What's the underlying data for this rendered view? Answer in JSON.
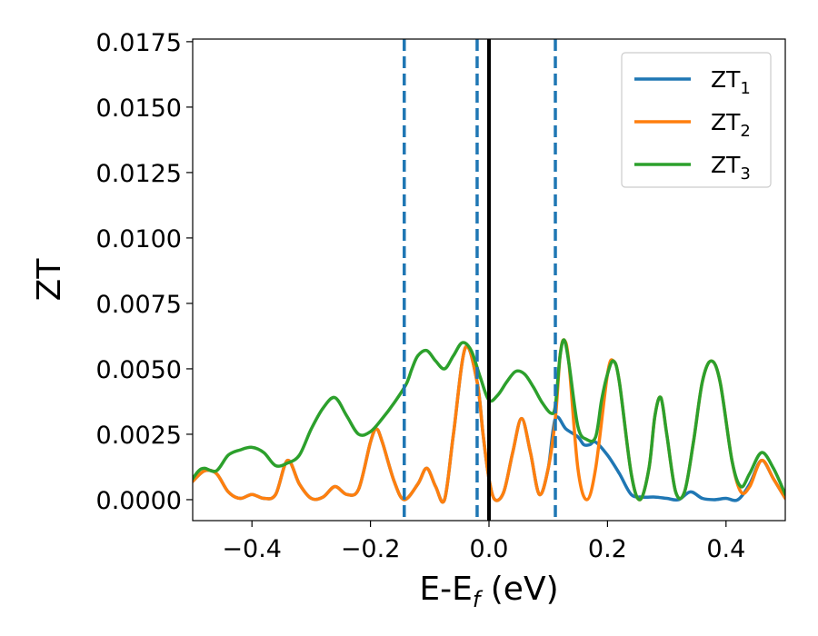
{
  "chart_data": {
    "type": "line",
    "xlabel_main": "E-E",
    "xlabel_sub": "f",
    "xlabel_unit": " (eV)",
    "ylabel": "ZT",
    "xlim": [
      -0.5,
      0.5
    ],
    "ylim": [
      -0.0008,
      0.0176
    ],
    "x_ticks": [
      -0.4,
      -0.2,
      0.0,
      0.2,
      0.4
    ],
    "x_tick_labels": [
      "−0.4",
      "−0.2",
      "0.0",
      "0.2",
      "0.4"
    ],
    "y_ticks": [
      0.0,
      0.0025,
      0.005,
      0.0075,
      0.01,
      0.0125,
      0.015,
      0.0175
    ],
    "y_tick_labels": [
      "0.0000",
      "0.0025",
      "0.0050",
      "0.0075",
      "0.0100",
      "0.0125",
      "0.0150",
      "0.0175"
    ],
    "grid": false,
    "legend_position": "top-right",
    "vlines": [
      {
        "x": -0.143,
        "style": "dashed",
        "color": "#1f77b4"
      },
      {
        "x": -0.02,
        "style": "dashed",
        "color": "#1f77b4"
      },
      {
        "x": 0.0,
        "style": "solid",
        "color": "#000000"
      },
      {
        "x": 0.112,
        "style": "dashed",
        "color": "#1f77b4"
      }
    ],
    "series": [
      {
        "name": "ZT",
        "subscript": "1",
        "color": "#1f77b4",
        "points": [
          [
            -0.5,
            0.0007
          ],
          [
            -0.48,
            0.0011
          ],
          [
            -0.46,
            0.001
          ],
          [
            -0.44,
            0.0003
          ],
          [
            -0.42,
            5e-05
          ],
          [
            -0.4,
            0.0002
          ],
          [
            -0.38,
            5e-05
          ],
          [
            -0.36,
            0.0002
          ],
          [
            -0.34,
            0.0015
          ],
          [
            -0.32,
            0.0006
          ],
          [
            -0.3,
            5e-05
          ],
          [
            -0.28,
            0.0001
          ],
          [
            -0.26,
            0.0005
          ],
          [
            -0.24,
            0.0002
          ],
          [
            -0.22,
            0.0004
          ],
          [
            -0.2,
            0.0022
          ],
          [
            -0.19,
            0.0027
          ],
          [
            -0.18,
            0.0022
          ],
          [
            -0.16,
            0.0007
          ],
          [
            -0.143,
            0.0
          ],
          [
            -0.12,
            0.0006
          ],
          [
            -0.105,
            0.0012
          ],
          [
            -0.09,
            0.0005
          ],
          [
            -0.075,
            0.0
          ],
          [
            -0.06,
            0.0025
          ],
          [
            -0.04,
            0.0058
          ],
          [
            -0.02,
            0.0045
          ],
          [
            -0.01,
            0.0025
          ],
          [
            0.0,
            0.0008
          ],
          [
            0.01,
            0.0
          ],
          [
            0.025,
            0.0003
          ],
          [
            0.04,
            0.0018
          ],
          [
            0.055,
            0.0031
          ],
          [
            0.07,
            0.0018
          ],
          [
            0.085,
            0.0002
          ],
          [
            0.1,
            0.0012
          ],
          [
            0.112,
            0.0031
          ],
          [
            0.13,
            0.0027
          ],
          [
            0.15,
            0.0024
          ],
          [
            0.16,
            0.0021
          ],
          [
            0.17,
            0.0021
          ],
          [
            0.18,
            0.0022
          ],
          [
            0.2,
            0.0017
          ],
          [
            0.22,
            0.001
          ],
          [
            0.24,
            0.0002
          ],
          [
            0.26,
            0.0001
          ],
          [
            0.28,
            0.0001
          ],
          [
            0.3,
            5e-05
          ],
          [
            0.32,
            0.0
          ],
          [
            0.34,
            0.0003
          ],
          [
            0.36,
            5e-05
          ],
          [
            0.38,
            0.0
          ],
          [
            0.4,
            5e-05
          ],
          [
            0.42,
            0.0
          ],
          [
            0.44,
            0.0006
          ],
          [
            0.46,
            0.0015
          ],
          [
            0.48,
            0.0008
          ],
          [
            0.5,
            5e-05
          ]
        ]
      },
      {
        "name": "ZT",
        "subscript": "2",
        "color": "#ff7f0e",
        "points": [
          [
            -0.5,
            0.0007
          ],
          [
            -0.48,
            0.0011
          ],
          [
            -0.46,
            0.001
          ],
          [
            -0.44,
            0.0003
          ],
          [
            -0.42,
            5e-05
          ],
          [
            -0.4,
            0.0002
          ],
          [
            -0.38,
            5e-05
          ],
          [
            -0.36,
            0.0002
          ],
          [
            -0.34,
            0.0015
          ],
          [
            -0.32,
            0.0006
          ],
          [
            -0.3,
            5e-05
          ],
          [
            -0.28,
            0.0001
          ],
          [
            -0.26,
            0.0005
          ],
          [
            -0.24,
            0.0002
          ],
          [
            -0.22,
            0.0004
          ],
          [
            -0.2,
            0.0022
          ],
          [
            -0.19,
            0.0027
          ],
          [
            -0.18,
            0.0022
          ],
          [
            -0.16,
            0.0007
          ],
          [
            -0.143,
            0.0
          ],
          [
            -0.12,
            0.0006
          ],
          [
            -0.105,
            0.0012
          ],
          [
            -0.09,
            0.0005
          ],
          [
            -0.075,
            0.0
          ],
          [
            -0.06,
            0.0025
          ],
          [
            -0.04,
            0.0058
          ],
          [
            -0.02,
            0.0045
          ],
          [
            -0.01,
            0.0025
          ],
          [
            0.0,
            0.0008
          ],
          [
            0.01,
            0.0
          ],
          [
            0.025,
            0.0003
          ],
          [
            0.04,
            0.0018
          ],
          [
            0.055,
            0.0031
          ],
          [
            0.07,
            0.0018
          ],
          [
            0.085,
            0.0002
          ],
          [
            0.1,
            0.0012
          ],
          [
            0.112,
            0.0031
          ],
          [
            0.12,
            0.0055
          ],
          [
            0.127,
            0.0061
          ],
          [
            0.135,
            0.0052
          ],
          [
            0.15,
            0.0012
          ],
          [
            0.165,
            0.0
          ],
          [
            0.18,
            0.0012
          ],
          [
            0.2,
            0.0048
          ],
          [
            0.21,
            0.0053
          ],
          [
            0.22,
            0.0045
          ],
          [
            0.24,
            0.001
          ],
          [
            0.255,
            0.0
          ],
          [
            0.27,
            0.0012
          ],
          [
            0.28,
            0.0032
          ],
          [
            0.29,
            0.0039
          ],
          [
            0.3,
            0.0025
          ],
          [
            0.315,
            0.0003
          ],
          [
            0.33,
            0.0003
          ],
          [
            0.345,
            0.0022
          ],
          [
            0.36,
            0.0045
          ],
          [
            0.375,
            0.0053
          ],
          [
            0.39,
            0.0045
          ],
          [
            0.41,
            0.0015
          ],
          [
            0.425,
            0.0003
          ],
          [
            0.44,
            0.0005
          ],
          [
            0.46,
            0.0015
          ],
          [
            0.48,
            0.0008
          ],
          [
            0.5,
            5e-05
          ]
        ]
      },
      {
        "name": "ZT",
        "subscript": "3",
        "color": "#2ca02c",
        "points": [
          [
            -0.5,
            0.0008
          ],
          [
            -0.49,
            0.0011
          ],
          [
            -0.48,
            0.0012
          ],
          [
            -0.46,
            0.0011
          ],
          [
            -0.44,
            0.0017
          ],
          [
            -0.42,
            0.0019
          ],
          [
            -0.4,
            0.002
          ],
          [
            -0.38,
            0.0018
          ],
          [
            -0.36,
            0.0013
          ],
          [
            -0.34,
            0.0014
          ],
          [
            -0.32,
            0.0017
          ],
          [
            -0.3,
            0.0027
          ],
          [
            -0.28,
            0.0035
          ],
          [
            -0.26,
            0.0039
          ],
          [
            -0.24,
            0.0032
          ],
          [
            -0.22,
            0.0025
          ],
          [
            -0.2,
            0.0026
          ],
          [
            -0.18,
            0.0031
          ],
          [
            -0.16,
            0.0037
          ],
          [
            -0.14,
            0.0044
          ],
          [
            -0.13,
            0.005
          ],
          [
            -0.12,
            0.0055
          ],
          [
            -0.105,
            0.0057
          ],
          [
            -0.09,
            0.0053
          ],
          [
            -0.075,
            0.005
          ],
          [
            -0.06,
            0.0055
          ],
          [
            -0.045,
            0.006
          ],
          [
            -0.03,
            0.0057
          ],
          [
            -0.015,
            0.0047
          ],
          [
            0.0,
            0.0038
          ],
          [
            0.015,
            0.004
          ],
          [
            0.03,
            0.0045
          ],
          [
            0.045,
            0.0049
          ],
          [
            0.06,
            0.0048
          ],
          [
            0.075,
            0.0043
          ],
          [
            0.09,
            0.0037
          ],
          [
            0.105,
            0.0033
          ],
          [
            0.112,
            0.0036
          ],
          [
            0.12,
            0.0055
          ],
          [
            0.127,
            0.0061
          ],
          [
            0.135,
            0.0052
          ],
          [
            0.15,
            0.0028
          ],
          [
            0.165,
            0.0023
          ],
          [
            0.18,
            0.0024
          ],
          [
            0.19,
            0.0038
          ],
          [
            0.2,
            0.0048
          ],
          [
            0.21,
            0.0053
          ],
          [
            0.22,
            0.0045
          ],
          [
            0.24,
            0.001
          ],
          [
            0.255,
            0.0
          ],
          [
            0.27,
            0.0012
          ],
          [
            0.28,
            0.0032
          ],
          [
            0.29,
            0.0039
          ],
          [
            0.3,
            0.0025
          ],
          [
            0.315,
            0.0003
          ],
          [
            0.33,
            0.0003
          ],
          [
            0.345,
            0.0022
          ],
          [
            0.36,
            0.0045
          ],
          [
            0.375,
            0.0053
          ],
          [
            0.39,
            0.0045
          ],
          [
            0.41,
            0.0015
          ],
          [
            0.425,
            0.0005
          ],
          [
            0.44,
            0.001
          ],
          [
            0.46,
            0.0018
          ],
          [
            0.48,
            0.0012
          ],
          [
            0.5,
            0.0002
          ]
        ]
      }
    ]
  }
}
